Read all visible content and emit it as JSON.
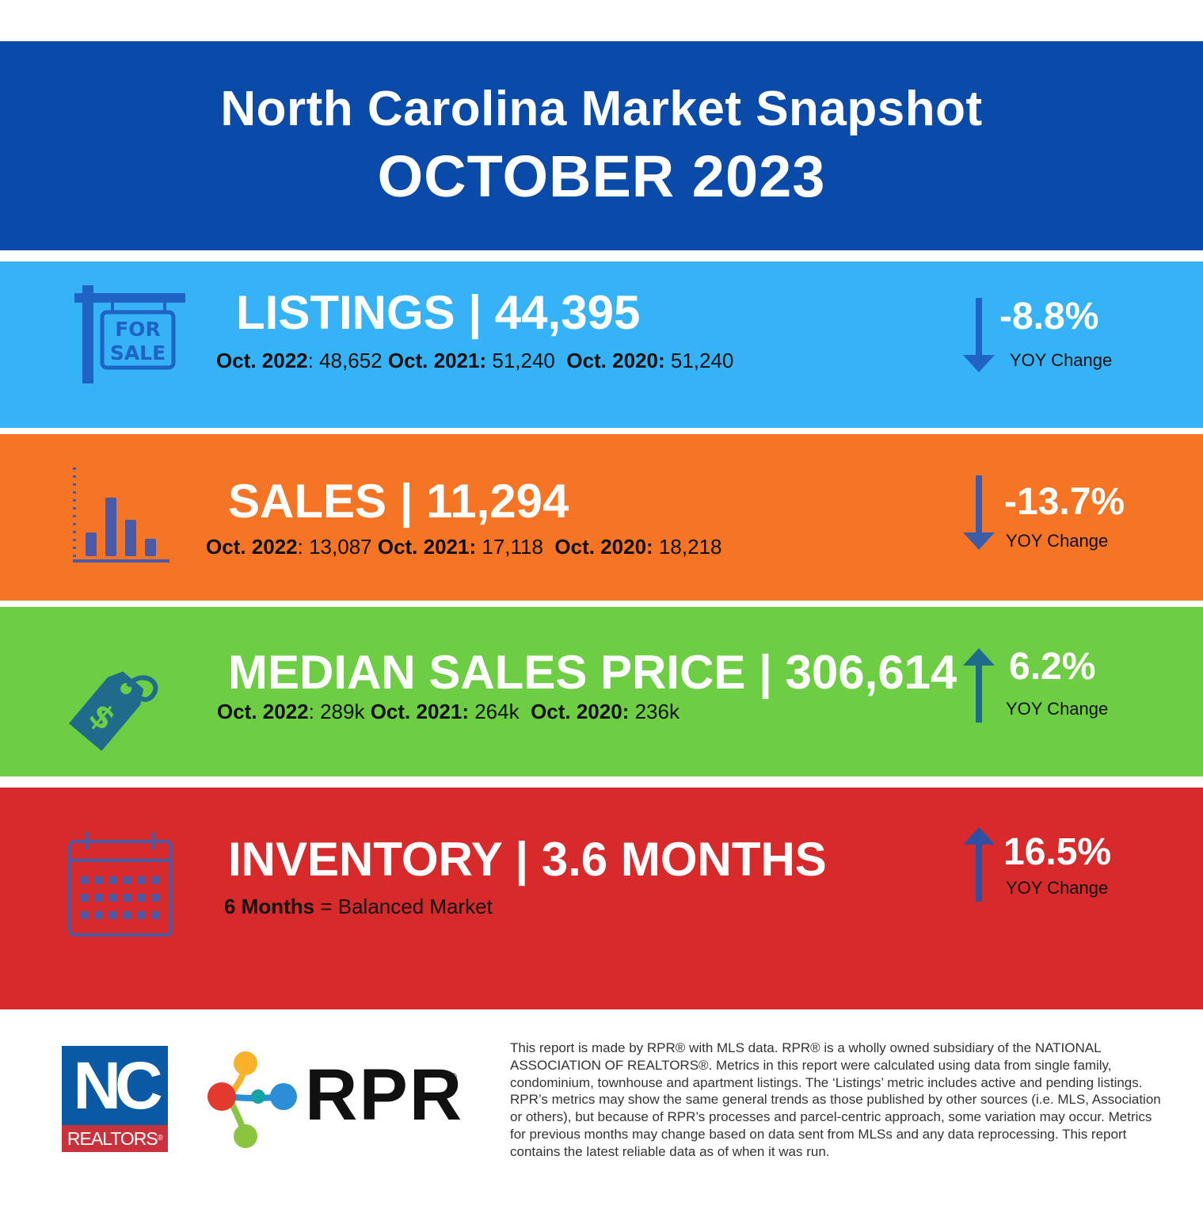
{
  "header": {
    "title": "North Carolina Market Snapshot",
    "period": "OCTOBER 2023"
  },
  "listings": {
    "heading": "LISTINGS | 44,395",
    "sign_line1": "FOR",
    "sign_line2": "SALE",
    "compare": [
      {
        "label": "Oct. 2022",
        "sep": ": ",
        "value": "48,652 "
      },
      {
        "label": "Oct. 2021:",
        "sep": " ",
        "value": "51,240  "
      },
      {
        "label": "Oct. 2020:",
        "sep": " ",
        "value": "51,240"
      }
    ],
    "change": "-8.8%",
    "change_label": "YOY Change",
    "direction": "down",
    "arrow_color": "#1f63c4"
  },
  "sales": {
    "heading": "SALES | 11,294",
    "compare": [
      {
        "label": "Oct. 2022",
        "sep": ": ",
        "value": "13,087 "
      },
      {
        "label": "Oct. 2021:",
        "sep": " ",
        "value": "17,118  "
      },
      {
        "label": "Oct. 2020:",
        "sep": " ",
        "value": "18,218"
      }
    ],
    "change": "-13.7%",
    "change_label": "YOY Change",
    "direction": "down",
    "arrow_color": "#3b5da8"
  },
  "median_price": {
    "heading": "MEDIAN SALES PRICE | 306,614",
    "compare": [
      {
        "label": "Oct. 2022",
        "sep": ": ",
        "value": "289k "
      },
      {
        "label": "Oct. 2021:",
        "sep": " ",
        "value": "264k  "
      },
      {
        "label": "Oct. 2020:",
        "sep": " ",
        "value": "236k"
      }
    ],
    "change": "6.2%",
    "change_label": "YOY Change",
    "direction": "up",
    "arrow_color": "#1e6b8c",
    "tag_symbol": "$"
  },
  "inventory": {
    "heading": "INVENTORY | 3.6 MONTHS",
    "note_bold": "6 Months",
    "note_rest": " = Balanced Market",
    "change": "16.5%",
    "change_label": "YOY Change",
    "direction": "up",
    "arrow_color": "#2e4fa3"
  },
  "footer": {
    "nc_logo_text": "NC",
    "nc_logo_sub": "REALTORS",
    "nc_logo_reg": "®",
    "rpr_logo_text": "RPR",
    "rpr_logo_reg": "®",
    "disclaimer": "This report is made by RPR® with MLS data. RPR® is a wholly owned subsidiary of the NATIONAL ASSOCIATION OF REALTORS®. Metrics in this report were calculated using data from single family, condominium, townhouse and apartment listings. The ‘Listings’ metric includes active and pending listings. RPR’s metrics may show the same general trends as those published by other sources (i.e. MLS, Association or others), but because of RPR’s processes and parcel-centric approach, some variation may occur. Metrics for previous months may change based on data sent from MLSs and any data reprocessing. This report contains the latest reliable data as of when it was run."
  },
  "colors": {
    "header_bg": "#0a4aa8",
    "listings_bg": "#36b3f7",
    "sales_bg": "#f57524",
    "price_bg": "#6dce43",
    "inventory_bg": "#d82a2a"
  }
}
